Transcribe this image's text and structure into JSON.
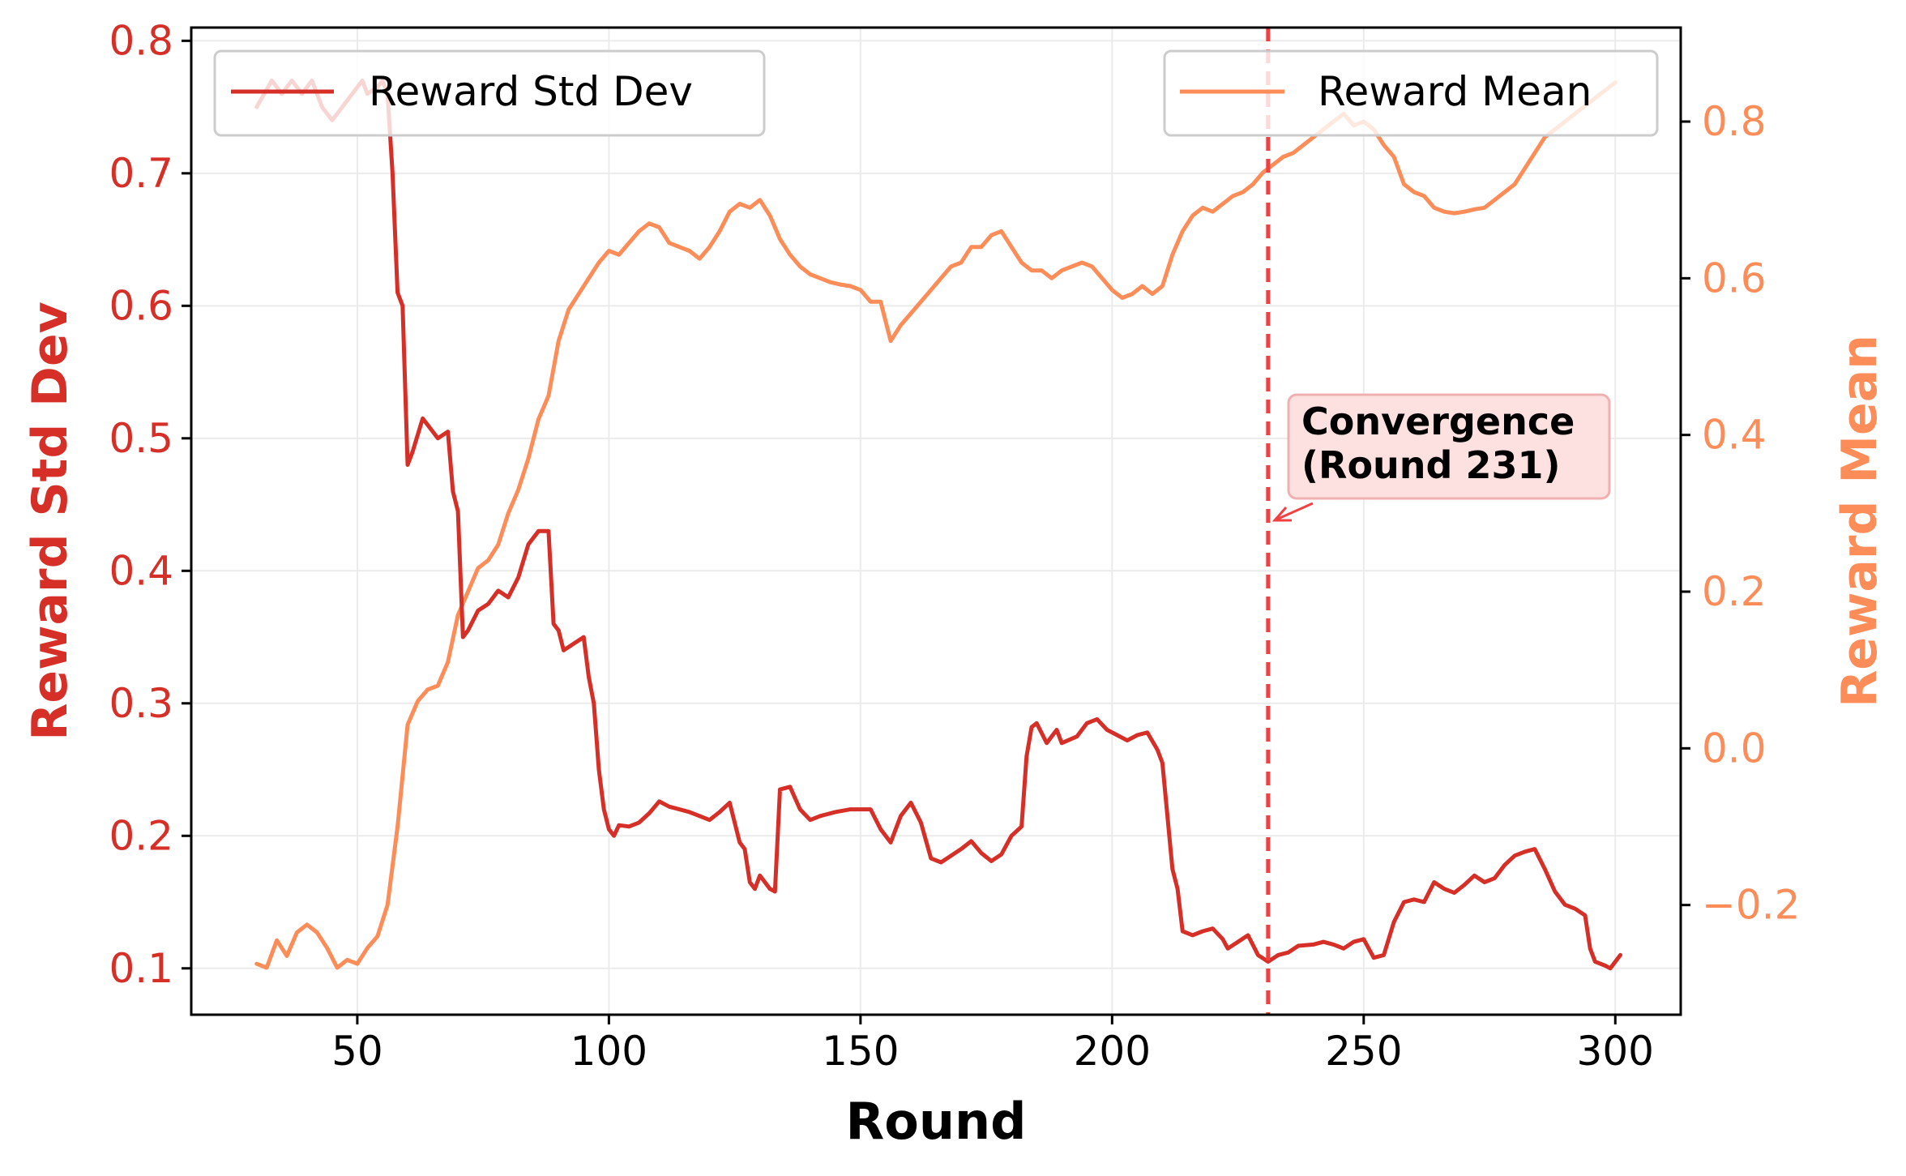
{
  "chart_data": {
    "type": "line",
    "xlabel": "Round",
    "ylabel_left": "Reward Std Dev",
    "ylabel_right": "Reward Mean",
    "xlim": [
      17,
      313
    ],
    "ylim_left": [
      0.065,
      0.81
    ],
    "ylim_right": [
      -0.34,
      0.92
    ],
    "x_ticks": [
      50,
      100,
      150,
      200,
      250,
      300
    ],
    "y_ticks_left": [
      0.1,
      0.2,
      0.3,
      0.4,
      0.5,
      0.6,
      0.7,
      0.8
    ],
    "y_ticks_right": [
      -0.2,
      0.0,
      0.2,
      0.4,
      0.6,
      0.8
    ],
    "y_tick_labels_left": [
      "0.1",
      "0.2",
      "0.3",
      "0.4",
      "0.5",
      "0.6",
      "0.7",
      "0.8"
    ],
    "y_tick_labels_right": [
      "−0.2",
      "0.0",
      "0.2",
      "0.4",
      "0.6",
      "0.8"
    ],
    "grid": true,
    "legend_left": "top-left",
    "legend_right": "top-right",
    "colors": {
      "std": "#d62f27",
      "mean": "#fc8d59",
      "vline": "#f24040",
      "annotation_bg": "#fde0e0",
      "annotation_border": "#f0b0b0"
    },
    "series": [
      {
        "name": "Reward Std Dev",
        "axis": "left",
        "points": [
          [
            30,
            0.75
          ],
          [
            33,
            0.77
          ],
          [
            35,
            0.76
          ],
          [
            37,
            0.77
          ],
          [
            39,
            0.76
          ],
          [
            41,
            0.77
          ],
          [
            43,
            0.75
          ],
          [
            45,
            0.74
          ],
          [
            47,
            0.75
          ],
          [
            49,
            0.76
          ],
          [
            51,
            0.77
          ],
          [
            52,
            0.76
          ],
          [
            54,
            0.765
          ],
          [
            55,
            0.77
          ],
          [
            56,
            0.76
          ],
          [
            57,
            0.7
          ],
          [
            58,
            0.61
          ],
          [
            59,
            0.6
          ],
          [
            60,
            0.48
          ],
          [
            61,
            0.49
          ],
          [
            63,
            0.515
          ],
          [
            65,
            0.505
          ],
          [
            66,
            0.5
          ],
          [
            68,
            0.505
          ],
          [
            69,
            0.46
          ],
          [
            70,
            0.445
          ],
          [
            71,
            0.35
          ],
          [
            72,
            0.355
          ],
          [
            74,
            0.37
          ],
          [
            76,
            0.375
          ],
          [
            78,
            0.385
          ],
          [
            80,
            0.38
          ],
          [
            82,
            0.395
          ],
          [
            84,
            0.42
          ],
          [
            86,
            0.43
          ],
          [
            88,
            0.43
          ],
          [
            89,
            0.36
          ],
          [
            90,
            0.355
          ],
          [
            91,
            0.34
          ],
          [
            93,
            0.345
          ],
          [
            95,
            0.35
          ],
          [
            96,
            0.32
          ],
          [
            97,
            0.3
          ],
          [
            98,
            0.25
          ],
          [
            99,
            0.22
          ],
          [
            100,
            0.205
          ],
          [
            101,
            0.2
          ],
          [
            102,
            0.208
          ],
          [
            104,
            0.207
          ],
          [
            106,
            0.21
          ],
          [
            108,
            0.217
          ],
          [
            110,
            0.226
          ],
          [
            112,
            0.222
          ],
          [
            114,
            0.22
          ],
          [
            116,
            0.218
          ],
          [
            118,
            0.215
          ],
          [
            120,
            0.212
          ],
          [
            122,
            0.218
          ],
          [
            124,
            0.225
          ],
          [
            126,
            0.195
          ],
          [
            127,
            0.19
          ],
          [
            128,
            0.165
          ],
          [
            129,
            0.16
          ],
          [
            130,
            0.17
          ],
          [
            132,
            0.16
          ],
          [
            133,
            0.158
          ],
          [
            134,
            0.235
          ],
          [
            136,
            0.237
          ],
          [
            138,
            0.22
          ],
          [
            140,
            0.212
          ],
          [
            142,
            0.215
          ],
          [
            145,
            0.218
          ],
          [
            148,
            0.22
          ],
          [
            150,
            0.22
          ],
          [
            152,
            0.22
          ],
          [
            154,
            0.205
          ],
          [
            156,
            0.195
          ],
          [
            157,
            0.205
          ],
          [
            158,
            0.215
          ],
          [
            160,
            0.225
          ],
          [
            162,
            0.21
          ],
          [
            164,
            0.183
          ],
          [
            166,
            0.18
          ],
          [
            168,
            0.185
          ],
          [
            170,
            0.19
          ],
          [
            172,
            0.196
          ],
          [
            174,
            0.187
          ],
          [
            176,
            0.181
          ],
          [
            178,
            0.186
          ],
          [
            180,
            0.2
          ],
          [
            182,
            0.207
          ],
          [
            183,
            0.26
          ],
          [
            184,
            0.282
          ],
          [
            185,
            0.285
          ],
          [
            187,
            0.27
          ],
          [
            189,
            0.28
          ],
          [
            190,
            0.27
          ],
          [
            193,
            0.275
          ],
          [
            195,
            0.285
          ],
          [
            197,
            0.288
          ],
          [
            199,
            0.28
          ],
          [
            201,
            0.276
          ],
          [
            203,
            0.272
          ],
          [
            205,
            0.276
          ],
          [
            207,
            0.278
          ],
          [
            209,
            0.265
          ],
          [
            210,
            0.255
          ],
          [
            212,
            0.175
          ],
          [
            213,
            0.16
          ],
          [
            214,
            0.128
          ],
          [
            216,
            0.125
          ],
          [
            218,
            0.128
          ],
          [
            220,
            0.13
          ],
          [
            222,
            0.122
          ],
          [
            223,
            0.115
          ],
          [
            225,
            0.12
          ],
          [
            227,
            0.125
          ],
          [
            229,
            0.11
          ],
          [
            231,
            0.105
          ],
          [
            233,
            0.11
          ],
          [
            235,
            0.112
          ],
          [
            237,
            0.117
          ],
          [
            240,
            0.118
          ],
          [
            242,
            0.12
          ],
          [
            244,
            0.118
          ],
          [
            246,
            0.115
          ],
          [
            248,
            0.12
          ],
          [
            250,
            0.122
          ],
          [
            252,
            0.108
          ],
          [
            254,
            0.11
          ],
          [
            256,
            0.135
          ],
          [
            258,
            0.15
          ],
          [
            260,
            0.152
          ],
          [
            262,
            0.15
          ],
          [
            264,
            0.165
          ],
          [
            266,
            0.16
          ],
          [
            268,
            0.157
          ],
          [
            270,
            0.163
          ],
          [
            272,
            0.17
          ],
          [
            274,
            0.165
          ],
          [
            276,
            0.168
          ],
          [
            278,
            0.178
          ],
          [
            280,
            0.185
          ],
          [
            282,
            0.188
          ],
          [
            284,
            0.19
          ],
          [
            286,
            0.175
          ],
          [
            288,
            0.158
          ],
          [
            290,
            0.148
          ],
          [
            292,
            0.145
          ],
          [
            294,
            0.14
          ],
          [
            295,
            0.115
          ],
          [
            296,
            0.105
          ],
          [
            298,
            0.102
          ],
          [
            299,
            0.1
          ],
          [
            301,
            0.11
          ]
        ]
      },
      {
        "name": "Reward Mean",
        "axis": "right",
        "points": [
          [
            30,
            -0.275
          ],
          [
            32,
            -0.28
          ],
          [
            34,
            -0.245
          ],
          [
            36,
            -0.265
          ],
          [
            38,
            -0.235
          ],
          [
            40,
            -0.225
          ],
          [
            42,
            -0.235
          ],
          [
            44,
            -0.255
          ],
          [
            46,
            -0.28
          ],
          [
            48,
            -0.27
          ],
          [
            50,
            -0.275
          ],
          [
            52,
            -0.255
          ],
          [
            54,
            -0.24
          ],
          [
            56,
            -0.2
          ],
          [
            58,
            -0.1
          ],
          [
            60,
            0.03
          ],
          [
            62,
            0.06
          ],
          [
            64,
            0.075
          ],
          [
            66,
            0.08
          ],
          [
            68,
            0.11
          ],
          [
            70,
            0.17
          ],
          [
            72,
            0.2
          ],
          [
            74,
            0.23
          ],
          [
            76,
            0.24
          ],
          [
            78,
            0.26
          ],
          [
            80,
            0.3
          ],
          [
            82,
            0.33
          ],
          [
            84,
            0.37
          ],
          [
            86,
            0.42
          ],
          [
            88,
            0.45
          ],
          [
            90,
            0.52
          ],
          [
            92,
            0.56
          ],
          [
            94,
            0.58
          ],
          [
            96,
            0.6
          ],
          [
            98,
            0.62
          ],
          [
            100,
            0.635
          ],
          [
            102,
            0.63
          ],
          [
            104,
            0.645
          ],
          [
            106,
            0.66
          ],
          [
            108,
            0.67
          ],
          [
            110,
            0.665
          ],
          [
            112,
            0.645
          ],
          [
            114,
            0.64
          ],
          [
            116,
            0.635
          ],
          [
            118,
            0.625
          ],
          [
            120,
            0.64
          ],
          [
            122,
            0.66
          ],
          [
            124,
            0.685
          ],
          [
            126,
            0.695
          ],
          [
            128,
            0.69
          ],
          [
            130,
            0.7
          ],
          [
            132,
            0.68
          ],
          [
            134,
            0.65
          ],
          [
            136,
            0.63
          ],
          [
            138,
            0.615
          ],
          [
            140,
            0.605
          ],
          [
            142,
            0.6
          ],
          [
            144,
            0.595
          ],
          [
            146,
            0.592
          ],
          [
            148,
            0.59
          ],
          [
            150,
            0.585
          ],
          [
            152,
            0.57
          ],
          [
            154,
            0.57
          ],
          [
            156,
            0.52
          ],
          [
            158,
            0.54
          ],
          [
            160,
            0.555
          ],
          [
            162,
            0.57
          ],
          [
            164,
            0.585
          ],
          [
            166,
            0.6
          ],
          [
            168,
            0.615
          ],
          [
            170,
            0.62
          ],
          [
            172,
            0.64
          ],
          [
            174,
            0.64
          ],
          [
            176,
            0.655
          ],
          [
            178,
            0.66
          ],
          [
            180,
            0.64
          ],
          [
            182,
            0.62
          ],
          [
            184,
            0.61
          ],
          [
            186,
            0.61
          ],
          [
            188,
            0.6
          ],
          [
            190,
            0.61
          ],
          [
            192,
            0.615
          ],
          [
            194,
            0.62
          ],
          [
            196,
            0.615
          ],
          [
            198,
            0.6
          ],
          [
            200,
            0.585
          ],
          [
            202,
            0.575
          ],
          [
            204,
            0.58
          ],
          [
            206,
            0.59
          ],
          [
            208,
            0.58
          ],
          [
            210,
            0.59
          ],
          [
            212,
            0.63
          ],
          [
            214,
            0.66
          ],
          [
            216,
            0.68
          ],
          [
            218,
            0.69
          ],
          [
            220,
            0.685
          ],
          [
            222,
            0.695
          ],
          [
            224,
            0.705
          ],
          [
            226,
            0.71
          ],
          [
            228,
            0.72
          ],
          [
            230,
            0.735
          ],
          [
            232,
            0.745
          ],
          [
            234,
            0.755
          ],
          [
            236,
            0.76
          ],
          [
            238,
            0.77
          ],
          [
            240,
            0.78
          ],
          [
            242,
            0.79
          ],
          [
            244,
            0.8
          ],
          [
            246,
            0.81
          ],
          [
            248,
            0.795
          ],
          [
            250,
            0.8
          ],
          [
            252,
            0.79
          ],
          [
            254,
            0.77
          ],
          [
            256,
            0.755
          ],
          [
            258,
            0.72
          ],
          [
            260,
            0.71
          ],
          [
            262,
            0.705
          ],
          [
            264,
            0.69
          ],
          [
            266,
            0.685
          ],
          [
            268,
            0.683
          ],
          [
            270,
            0.685
          ],
          [
            272,
            0.688
          ],
          [
            274,
            0.69
          ],
          [
            276,
            0.7
          ],
          [
            278,
            0.71
          ],
          [
            280,
            0.72
          ],
          [
            282,
            0.74
          ],
          [
            284,
            0.76
          ],
          [
            286,
            0.78
          ],
          [
            288,
            0.79
          ],
          [
            290,
            0.8
          ],
          [
            292,
            0.81
          ],
          [
            294,
            0.82
          ],
          [
            296,
            0.83
          ],
          [
            298,
            0.84
          ],
          [
            300,
            0.85
          ]
        ]
      }
    ],
    "vline": {
      "x": 231
    },
    "annotation": {
      "line1": "Convergence",
      "line2": "(Round 231)"
    }
  }
}
